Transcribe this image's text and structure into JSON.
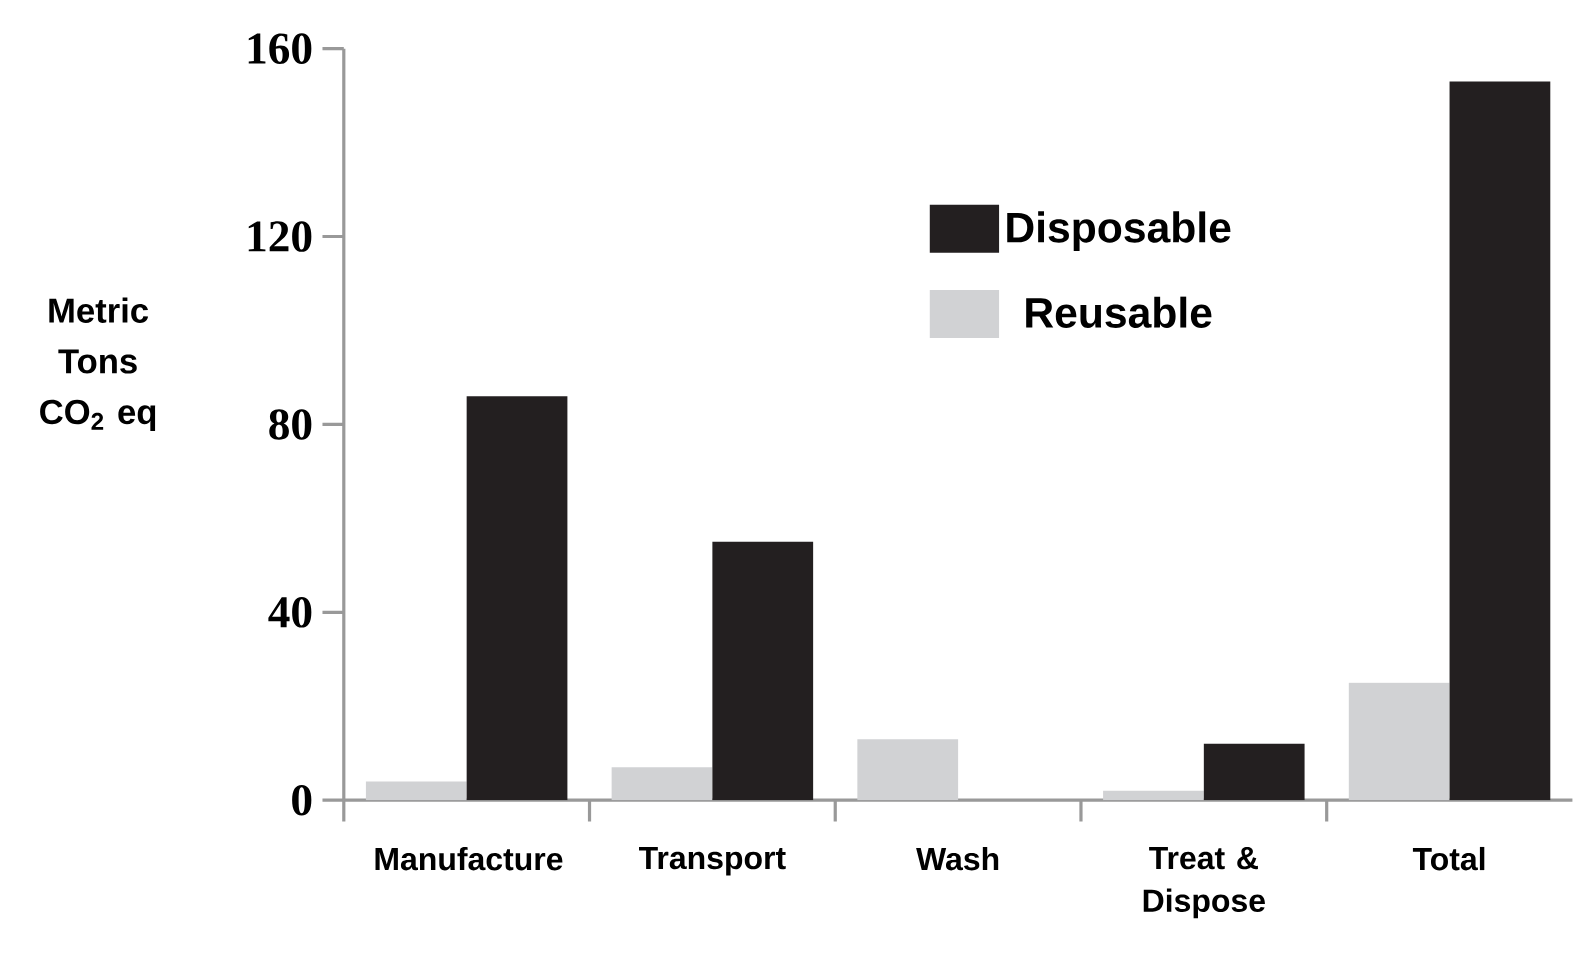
{
  "chart_data": {
    "type": "bar",
    "ylabel": "Metric Tons CO$_{2}$ eq",
    "categories": [
      "Manufacture",
      "Transport",
      "Wash",
      "Treat & Dispose",
      "Total"
    ],
    "series": [
      {
        "name": "Reusable",
        "color": "#d1d2d4",
        "values": [
          4,
          7,
          13,
          2,
          25
        ]
      },
      {
        "name": "Disposable",
        "color": "#231f20",
        "values": [
          86,
          55,
          0,
          12,
          153
        ]
      }
    ],
    "ylim": [
      0,
      160
    ],
    "yticks": [
      0,
      40,
      80,
      120,
      160
    ],
    "legend": "top",
    "grid": false
  }
}
